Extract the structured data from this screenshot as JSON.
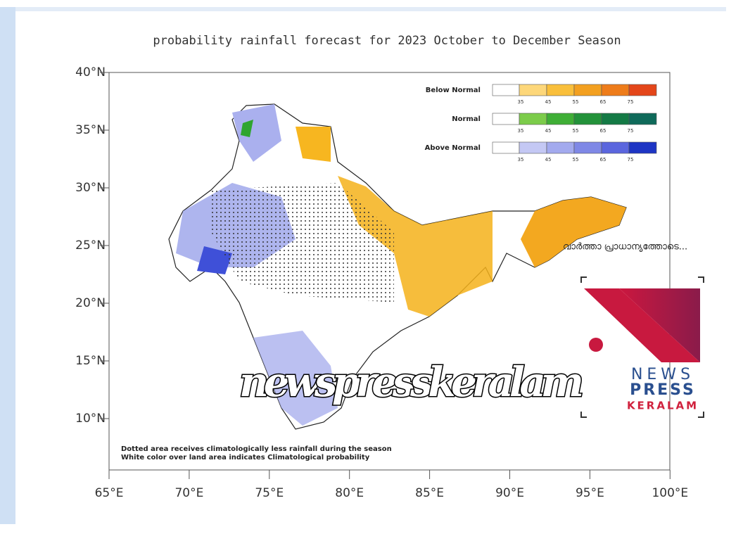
{
  "title": "probability rainfall forecast for 2023 October to December Season",
  "map": {
    "lat_labels": [
      "40°N",
      "35°N",
      "30°N",
      "25°N",
      "20°N",
      "15°N",
      "10°N"
    ],
    "lon_labels": [
      "65°E",
      "70°E",
      "75°E",
      "80°E",
      "85°E",
      "90°E",
      "95°E",
      "100°E"
    ],
    "notes": [
      "Dotted area receives climatologically less rainfall during the season",
      "White color over land area indicates Climatological probability"
    ]
  },
  "legend": [
    {
      "label": "Below Normal",
      "ticks": [
        "35",
        "45",
        "55",
        "65",
        "75"
      ]
    },
    {
      "label": "Normal",
      "ticks": [
        "35",
        "45",
        "55",
        "65",
        "75"
      ]
    },
    {
      "label": "Above Normal",
      "ticks": [
        "35",
        "45",
        "55",
        "65",
        "75"
      ]
    }
  ],
  "watermark": "newspresskeralam",
  "tagline": "വാർത്താ പ്രാധാന്യത്തോടെ...",
  "logo": [
    "NEWS",
    "PRESS",
    "KERALAM"
  ]
}
